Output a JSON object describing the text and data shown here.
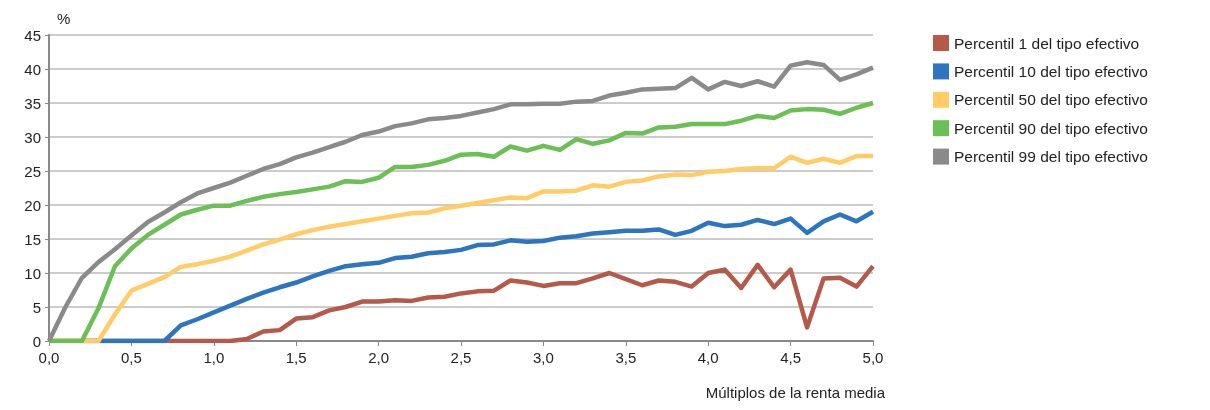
{
  "chart_data": {
    "type": "line",
    "xlabel": "Múltiplos de la renta media",
    "ylabel": "%",
    "x": [
      0,
      0.1,
      0.2,
      0.3,
      0.4,
      0.5,
      0.6,
      0.7,
      0.8,
      0.9,
      1.0,
      1.1,
      1.2,
      1.3,
      1.4,
      1.5,
      1.6,
      1.7,
      1.8,
      1.9,
      2.0,
      2.1,
      2.2,
      2.3,
      2.4,
      2.5,
      2.6,
      2.7,
      2.8,
      2.9,
      3.0,
      3.1,
      3.2,
      3.3,
      3.4,
      3.5,
      3.6,
      3.7,
      3.8,
      3.9,
      4.0,
      4.1,
      4.2,
      4.3,
      4.4,
      4.5,
      4.6,
      4.7,
      4.8,
      4.9,
      5.0
    ],
    "series": [
      {
        "name": "Percentil 1 del tipo efectivo",
        "color": "#b55a4a",
        "values": [
          0,
          0,
          0,
          0,
          0,
          0,
          0,
          0,
          0,
          0,
          0,
          0,
          0.3,
          1.4,
          1.6,
          3.3,
          3.5,
          4.5,
          5.0,
          5.8,
          5.8,
          6.0,
          5.9,
          6.4,
          6.5,
          7.0,
          7.3,
          7.4,
          8.9,
          8.6,
          8.1,
          8.5,
          8.5,
          9.2,
          10.0,
          9.1,
          8.2,
          8.9,
          8.7,
          8.0,
          10.0,
          10.5,
          7.8,
          11.2,
          7.9,
          10.5,
          2.0,
          9.2,
          9.3,
          8.0,
          11.0
        ]
      },
      {
        "name": "Percentil 10 del tipo efectivo",
        "color": "#2e75c0",
        "values": [
          null,
          null,
          0,
          0,
          0,
          0,
          0,
          0,
          2.3,
          3.2,
          4.2,
          5.2,
          6.2,
          7.1,
          7.9,
          8.6,
          9.5,
          10.3,
          11.0,
          11.3,
          11.5,
          12.2,
          12.4,
          12.9,
          13.1,
          13.4,
          14.1,
          14.2,
          14.8,
          14.6,
          14.7,
          15.2,
          15.4,
          15.8,
          16.0,
          16.2,
          16.2,
          16.4,
          15.6,
          16.2,
          17.4,
          16.9,
          17.1,
          17.8,
          17.2,
          18.0,
          15.9,
          17.6,
          18.6,
          17.6,
          19.0
        ]
      },
      {
        "name": "Percentil 50 del tipo efectivo",
        "color": "#ffcc66",
        "values": [
          0,
          0,
          0,
          0,
          3.9,
          7.4,
          8.4,
          9.4,
          10.9,
          11.3,
          11.8,
          12.4,
          13.3,
          14.2,
          14.9,
          15.7,
          16.3,
          16.8,
          17.2,
          17.6,
          18.0,
          18.4,
          18.8,
          18.9,
          19.5,
          19.9,
          20.3,
          20.7,
          21.1,
          21.0,
          22.0,
          22.0,
          22.1,
          22.9,
          22.7,
          23.4,
          23.6,
          24.2,
          24.5,
          24.4,
          24.9,
          25.0,
          25.3,
          25.4,
          25.4,
          27.1,
          26.2,
          26.8,
          26.2,
          27.2,
          27.2
        ]
      },
      {
        "name": "Percentil 90 del tipo efectivo",
        "color": "#6abf55",
        "values": [
          0,
          0,
          0,
          4.8,
          11.0,
          13.6,
          15.6,
          17.1,
          18.6,
          19.3,
          19.9,
          19.9,
          20.6,
          21.2,
          21.6,
          21.9,
          22.3,
          22.7,
          23.5,
          23.4,
          24.0,
          25.6,
          25.6,
          25.9,
          26.5,
          27.4,
          27.5,
          27.1,
          28.6,
          28.0,
          28.7,
          28.1,
          29.7,
          29.0,
          29.5,
          30.6,
          30.5,
          31.4,
          31.5,
          31.9,
          31.9,
          31.9,
          32.4,
          33.1,
          32.8,
          33.9,
          34.1,
          34.0,
          33.4,
          34.3,
          35.0
        ]
      },
      {
        "name": "Percentil 99 del tipo efectivo",
        "color": "#8a8a8a",
        "values": [
          0,
          5.0,
          9.3,
          11.6,
          13.5,
          15.5,
          17.5,
          18.9,
          20.4,
          21.7,
          22.5,
          23.3,
          24.3,
          25.3,
          26.0,
          27.0,
          27.7,
          28.5,
          29.3,
          30.3,
          30.8,
          31.6,
          32.0,
          32.6,
          32.8,
          33.1,
          33.6,
          34.1,
          34.8,
          34.8,
          34.9,
          34.9,
          35.2,
          35.3,
          36.1,
          36.5,
          37.0,
          37.1,
          37.2,
          38.7,
          37.0,
          38.1,
          37.5,
          38.2,
          37.4,
          40.5,
          41.0,
          40.6,
          38.4,
          39.2,
          40.2
        ]
      }
    ],
    "xlim": [
      0,
      5
    ],
    "xticks": [
      {
        "value": 0,
        "label": "0,0"
      },
      {
        "value": 0.5,
        "label": "0,5"
      },
      {
        "value": 1,
        "label": "1,0"
      },
      {
        "value": 1.5,
        "label": "1,5"
      },
      {
        "value": 2,
        "label": "2,0"
      },
      {
        "value": 2.5,
        "label": "2,5"
      },
      {
        "value": 3,
        "label": "3,0"
      },
      {
        "value": 3.5,
        "label": "3,5"
      },
      {
        "value": 4,
        "label": "4,0"
      },
      {
        "value": 4.5,
        "label": "4,5"
      },
      {
        "value": 5,
        "label": "5,0"
      }
    ],
    "ylim": [
      0,
      45
    ],
    "yticks": [
      0,
      5,
      10,
      15,
      20,
      25,
      30,
      35,
      40,
      45
    ],
    "grid": "y",
    "legend": "right",
    "marker": "none",
    "line_style": "solid"
  }
}
